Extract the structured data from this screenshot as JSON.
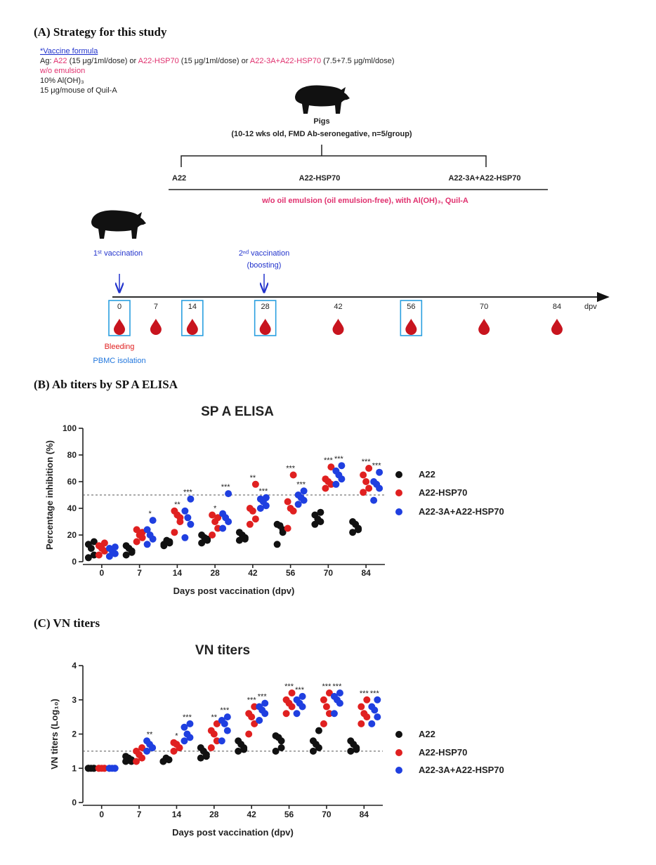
{
  "panel_a": {
    "title": "(A) Strategy for this study",
    "formula_heading": "*Vaccine formula",
    "ag_line": [
      "Ag: ",
      "A22",
      " (15 μg/1ml/dose) or ",
      "A22-HSP70",
      " (15 μg/1ml/dose) or ",
      "A22-3A+A22-HSP70",
      " (7.5+7.5 μg/ml/dose)"
    ],
    "emulsion": "w/o emulsion",
    "adjuvant": "10% Al(OH)₃",
    "quil_a": "15 μg/mouse of Quil-A",
    "animals_title": "Pigs",
    "animals_detail": "(10-12 wks old, FMD Ab-seronegative, n=5/group)",
    "groups": [
      "A22",
      "A22-HSP70",
      "A22-3A+A22-HSP70"
    ],
    "group_note": "w/o oil emulsion (oil emulsion-free), with Al(OH)₃, Quil-A",
    "first_vaccination": "1ˢᵗ vaccination",
    "second_vaccination": "2ⁿᵈ vaccination",
    "boosting": "(boosting)",
    "days": [
      0,
      7,
      14,
      28,
      42,
      56,
      70,
      84
    ],
    "pbmc_days": [
      true,
      false,
      true,
      true,
      false,
      true,
      false,
      false
    ],
    "unit": "dpv",
    "bleeding": "Bleeding",
    "pbmc": "PBMC isolation"
  },
  "panel_b_title": "(B) Ab titers by SP A ELISA",
  "panel_c_title": "(C) VN titers",
  "chart_data": [
    {
      "type": "dot",
      "title": "SP A ELISA",
      "x_label": "Days post vaccination (dpv)",
      "y_label": "Percentage inhibition (%)",
      "categories": [
        "0",
        "7",
        "14",
        "28",
        "42",
        "56",
        "70",
        "84"
      ],
      "ylim": [
        0,
        100
      ],
      "yticks": [
        0,
        20,
        40,
        60,
        80,
        100
      ],
      "threshold": 50,
      "series": [
        {
          "name": "A22",
          "color": "#111111",
          "values": [
            [
              3,
              5,
              10,
              13,
              15
            ],
            [
              5,
              8,
              10,
              12,
              7
            ],
            [
              12,
              14,
              16,
              13,
              15
            ],
            [
              14,
              16,
              18,
              20,
              17
            ],
            [
              16,
              18,
              20,
              22,
              17
            ],
            [
              13,
              24,
              27,
              28,
              22
            ],
            [
              28,
              30,
              32,
              35,
              37
            ],
            [
              22,
              24,
              28,
              30,
              25
            ]
          ],
          "stars": [
            null,
            null,
            null,
            null,
            null,
            null,
            null,
            null
          ]
        },
        {
          "name": "A22-HSP70",
          "color": "#e02020",
          "values": [
            [
              5,
              8,
              10,
              12,
              14
            ],
            [
              15,
              18,
              20,
              24,
              22
            ],
            [
              22,
              30,
              35,
              38,
              33
            ],
            [
              20,
              25,
              30,
              35,
              33
            ],
            [
              28,
              32,
              38,
              40,
              58
            ],
            [
              25,
              38,
              40,
              45,
              65
            ],
            [
              55,
              58,
              60,
              62,
              71
            ],
            [
              52,
              55,
              60,
              65,
              70
            ]
          ],
          "stars": [
            null,
            null,
            "**",
            "*",
            "**",
            "***",
            "***",
            "***"
          ]
        },
        {
          "name": "A22-3A+A22-HSP70",
          "color": "#1f3fe0",
          "values": [
            [
              4,
              6,
              8,
              10,
              11
            ],
            [
              13,
              17,
              20,
              24,
              31
            ],
            [
              18,
              28,
              33,
              38,
              47
            ],
            [
              25,
              30,
              33,
              36,
              51
            ],
            [
              40,
              42,
              45,
              47,
              48
            ],
            [
              43,
              46,
              48,
              50,
              53
            ],
            [
              58,
              62,
              65,
              68,
              72
            ],
            [
              46,
              55,
              58,
              60,
              67
            ]
          ],
          "stars": [
            null,
            "*",
            "***",
            "***",
            "***",
            "***",
            "***",
            "***"
          ]
        }
      ]
    },
    {
      "type": "dot",
      "title": "VN titers",
      "x_label": "Days post vaccination (dpv)",
      "y_label": "VN titers (Log₁₀)",
      "categories": [
        "0",
        "7",
        "14",
        "28",
        "42",
        "56",
        "70",
        "84"
      ],
      "ylim": [
        0,
        4
      ],
      "yticks": [
        0,
        1,
        2,
        3,
        4
      ],
      "threshold": 1.5,
      "series": [
        {
          "name": "A22",
          "color": "#111111",
          "values": [
            [
              1,
              1,
              1,
              1,
              1
            ],
            [
              1.2,
              1.25,
              1.3,
              1.35,
              1.2
            ],
            [
              1.2,
              1.25,
              1.3,
              1.2,
              1.25
            ],
            [
              1.3,
              1.4,
              1.5,
              1.6,
              1.35
            ],
            [
              1.5,
              1.6,
              1.7,
              1.8,
              1.55
            ],
            [
              1.5,
              1.8,
              1.9,
              1.95,
              1.6
            ],
            [
              1.5,
              1.6,
              1.7,
              1.8,
              2.1
            ],
            [
              1.5,
              1.6,
              1.7,
              1.8,
              1.55
            ]
          ],
          "stars": [
            null,
            null,
            null,
            null,
            null,
            null,
            null,
            null
          ]
        },
        {
          "name": "A22-HSP70",
          "color": "#e02020",
          "values": [
            [
              1,
              1,
              1,
              1,
              1
            ],
            [
              1.2,
              1.3,
              1.4,
              1.5,
              1.6
            ],
            [
              1.5,
              1.6,
              1.7,
              1.75,
              1.6
            ],
            [
              1.6,
              1.8,
              2.0,
              2.1,
              2.3
            ],
            [
              2.0,
              2.3,
              2.5,
              2.6,
              2.8
            ],
            [
              2.6,
              2.8,
              2.9,
              3.0,
              3.2
            ],
            [
              2.3,
              2.6,
              2.8,
              3.0,
              3.2
            ],
            [
              2.3,
              2.5,
              2.6,
              2.8,
              3.0
            ]
          ],
          "stars": [
            null,
            null,
            "*",
            "**",
            "***",
            "***",
            "***",
            "***"
          ]
        },
        {
          "name": "A22-3A+A22-HSP70",
          "color": "#1f3fe0",
          "values": [
            [
              1,
              1,
              1,
              1,
              1
            ],
            [
              1.5,
              1.6,
              1.7,
              1.8,
              1.6
            ],
            [
              1.8,
              1.9,
              2.0,
              2.2,
              2.3
            ],
            [
              1.8,
              2.1,
              2.3,
              2.4,
              2.5
            ],
            [
              2.4,
              2.6,
              2.7,
              2.8,
              2.9
            ],
            [
              2.6,
              2.8,
              2.9,
              3.0,
              3.1
            ],
            [
              2.6,
              2.9,
              3.0,
              3.1,
              3.2
            ],
            [
              2.3,
              2.5,
              2.7,
              2.8,
              3.0
            ]
          ],
          "stars": [
            null,
            "**",
            "***",
            "***",
            "***",
            "***",
            "***",
            "***"
          ]
        }
      ]
    }
  ]
}
